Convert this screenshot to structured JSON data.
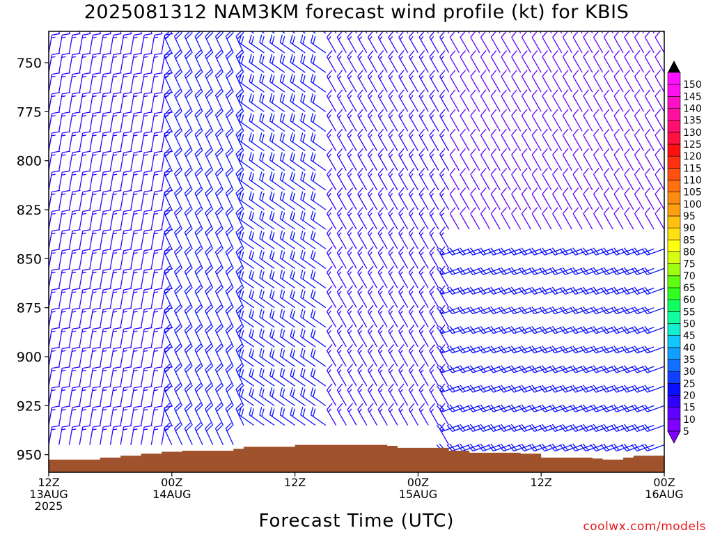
{
  "chart_data": {
    "type": "wind-barb-time-height",
    "title": "2025081312 NAM3KM forecast wind profile (kt) for KBIS",
    "xlabel": "Forecast Time (UTC)",
    "credit": "coolwx.com/models",
    "x_ticks": [
      {
        "hours": 0,
        "lines": [
          "12Z",
          "13AUG",
          "2025"
        ]
      },
      {
        "hours": 12,
        "lines": [
          "00Z",
          "14AUG"
        ]
      },
      {
        "hours": 24,
        "lines": [
          "12Z"
        ]
      },
      {
        "hours": 36,
        "lines": [
          "00Z",
          "15AUG"
        ]
      },
      {
        "hours": 48,
        "lines": [
          "12Z"
        ]
      },
      {
        "hours": 60,
        "lines": [
          "00Z",
          "16AUG"
        ]
      }
    ],
    "xlim_hours": [
      0,
      60
    ],
    "ylim_hPa": [
      734,
      959
    ],
    "y_ticks": [
      750,
      775,
      800,
      825,
      850,
      875,
      900,
      925,
      950
    ],
    "y_inverted": true,
    "barb_times_hours": [
      0,
      1,
      2,
      3,
      4,
      5,
      6,
      7,
      8,
      9,
      10,
      11,
      12,
      13,
      14,
      15,
      16,
      17,
      18,
      19,
      20,
      21,
      22,
      23,
      24,
      25,
      26,
      27,
      28,
      29,
      30,
      31,
      32,
      33,
      34,
      35,
      36,
      37,
      38,
      39,
      40,
      41,
      42,
      43,
      44,
      45,
      46,
      47,
      48,
      49,
      50,
      51,
      52,
      53,
      54,
      55,
      56,
      57,
      58,
      59,
      60
    ],
    "barb_levels_hPa": [
      735,
      745,
      755,
      765,
      775,
      785,
      795,
      805,
      815,
      825,
      835,
      845,
      855,
      865,
      875,
      885,
      895,
      905,
      915,
      925,
      935,
      945
    ],
    "wind_regimes": [
      {
        "t_start": 0,
        "t_end": 12,
        "p_top": 735,
        "p_bottom": 959,
        "direction_from_deg": 10,
        "speed_kt": 15
      },
      {
        "t_start": 12,
        "t_end": 20,
        "p_top": 735,
        "p_bottom": 959,
        "direction_from_deg": 335,
        "speed_kt": 20
      },
      {
        "t_start": 20,
        "t_end": 28,
        "p_top": 735,
        "p_bottom": 959,
        "direction_from_deg": 305,
        "speed_kt": 20
      },
      {
        "t_start": 28,
        "t_end": 40,
        "p_top": 735,
        "p_bottom": 959,
        "direction_from_deg": 330,
        "speed_kt": 15
      },
      {
        "t_start": 40,
        "t_end": 60,
        "p_top": 735,
        "p_bottom": 840,
        "direction_from_deg": 330,
        "speed_kt": 10
      },
      {
        "t_start": 40,
        "t_end": 60,
        "p_top": 840,
        "p_bottom": 959,
        "direction_from_deg": 250,
        "speed_kt": 20
      }
    ],
    "surface_pressure_hPa": [
      {
        "hours": 0,
        "hPa": 952.5
      },
      {
        "hours": 5,
        "hPa": 951.5
      },
      {
        "hours": 7,
        "hPa": 950.5
      },
      {
        "hours": 9,
        "hPa": 949.5
      },
      {
        "hours": 11,
        "hPa": 948.5
      },
      {
        "hours": 13,
        "hPa": 948
      },
      {
        "hours": 17,
        "hPa": 948
      },
      {
        "hours": 18,
        "hPa": 947
      },
      {
        "hours": 19,
        "hPa": 946
      },
      {
        "hours": 23,
        "hPa": 946
      },
      {
        "hours": 24,
        "hPa": 945
      },
      {
        "hours": 33,
        "hPa": 945.5
      },
      {
        "hours": 34,
        "hPa": 946.5
      },
      {
        "hours": 37,
        "hPa": 946.5
      },
      {
        "hours": 39,
        "hPa": 948
      },
      {
        "hours": 41,
        "hPa": 949
      },
      {
        "hours": 46,
        "hPa": 949.5
      },
      {
        "hours": 48,
        "hPa": 951.5
      },
      {
        "hours": 53,
        "hPa": 952
      },
      {
        "hours": 54,
        "hPa": 952.5
      },
      {
        "hours": 56,
        "hPa": 951.5
      },
      {
        "hours": 57,
        "hPa": 950.5
      },
      {
        "hours": 60,
        "hPa": 950.5
      }
    ],
    "colorbar": {
      "levels": [
        5,
        10,
        15,
        20,
        25,
        30,
        35,
        40,
        45,
        50,
        55,
        60,
        65,
        70,
        75,
        80,
        85,
        90,
        95,
        100,
        105,
        110,
        115,
        120,
        125,
        130,
        135,
        140,
        145,
        150
      ],
      "colors": [
        "#8000ff",
        "#6000ff",
        "#3000ff",
        "#0a10ff",
        "#1040ff",
        "#1070ff",
        "#10a0ff",
        "#10c8ff",
        "#10f0d0",
        "#10ffa0",
        "#10ff60",
        "#30ff20",
        "#60ff10",
        "#a0ff10",
        "#d8ff10",
        "#ffff10",
        "#ffe010",
        "#ffc010",
        "#ffa010",
        "#ff8c10",
        "#ff7010",
        "#ff5010",
        "#ff3010",
        "#ff1010",
        "#ff1040",
        "#ff1070",
        "#ff10a0",
        "#ff10c8",
        "#ff10f0",
        "#ff10ff"
      ],
      "label_step": 5
    },
    "terrain_color": "#a0522d"
  }
}
